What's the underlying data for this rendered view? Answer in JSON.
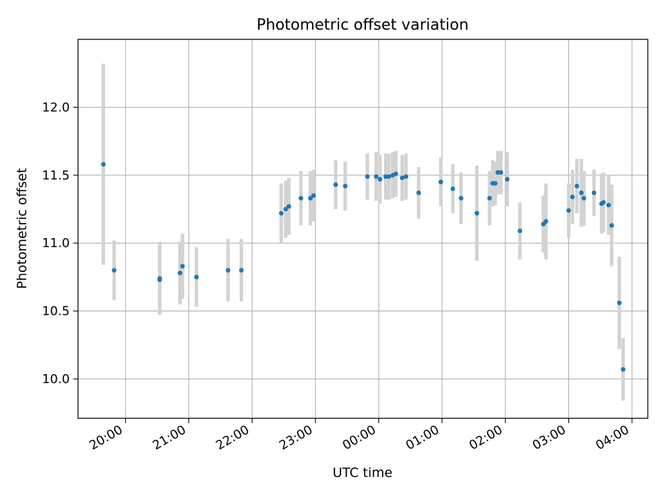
{
  "chart_data": {
    "type": "scatter",
    "title": "Photometric offset variation",
    "xlabel": "UTC time",
    "ylabel": "Photometric offset",
    "x_unit": "hours after midnight UTC (negative = before 00:00)",
    "xlim": [
      -4.75,
      4.25
    ],
    "ylim": [
      9.71,
      12.5
    ],
    "x_ticks": [
      -4,
      -3,
      -2,
      -1,
      0,
      1,
      2,
      3,
      4
    ],
    "x_tick_labels": [
      "20:00",
      "21:00",
      "22:00",
      "23:00",
      "00:00",
      "01:00",
      "02:00",
      "03:00",
      "04:00"
    ],
    "y_ticks": [
      10.0,
      10.5,
      11.0,
      11.5,
      12.0
    ],
    "y_tick_labels": [
      "10.0",
      "10.5",
      "11.0",
      "11.5",
      "12.0"
    ],
    "grid": true,
    "colors": {
      "point": "#1f77b4",
      "errorbar": "#d3d3d3",
      "grid": "#b0b0b0"
    },
    "series": [
      {
        "marker": "dot",
        "points": [
          {
            "x": -4.35,
            "y": 11.58,
            "err": 0.74
          },
          {
            "x": -4.18,
            "y": 10.8,
            "err": 0.22
          },
          {
            "x": -3.46,
            "y": 10.74,
            "err": 0.27
          },
          {
            "x": -3.46,
            "y": 10.73,
            "err": 0.24
          },
          {
            "x": -3.14,
            "y": 10.78,
            "err": 0.23
          },
          {
            "x": -3.1,
            "y": 10.83,
            "err": 0.24
          },
          {
            "x": -2.88,
            "y": 10.75,
            "err": 0.22
          },
          {
            "x": -2.38,
            "y": 10.8,
            "err": 0.23
          },
          {
            "x": -2.17,
            "y": 10.8,
            "err": 0.23
          },
          {
            "x": -1.54,
            "y": 11.22,
            "err": 0.22
          },
          {
            "x": -1.47,
            "y": 11.25,
            "err": 0.21
          },
          {
            "x": -1.42,
            "y": 11.27,
            "err": 0.21
          },
          {
            "x": -1.23,
            "y": 11.33,
            "err": 0.2
          },
          {
            "x": -1.08,
            "y": 11.33,
            "err": 0.2
          },
          {
            "x": -1.03,
            "y": 11.35,
            "err": 0.19
          },
          {
            "x": -0.68,
            "y": 11.43,
            "err": 0.18
          },
          {
            "x": -0.53,
            "y": 11.42,
            "err": 0.18
          },
          {
            "x": -0.18,
            "y": 11.49,
            "err": 0.17
          },
          {
            "x": -0.04,
            "y": 11.49,
            "err": 0.18
          },
          {
            "x": 0.02,
            "y": 11.47,
            "err": 0.18
          },
          {
            "x": 0.11,
            "y": 11.49,
            "err": 0.17
          },
          {
            "x": 0.16,
            "y": 11.49,
            "err": 0.17
          },
          {
            "x": 0.22,
            "y": 11.5,
            "err": 0.17
          },
          {
            "x": 0.27,
            "y": 11.51,
            "err": 0.17
          },
          {
            "x": 0.37,
            "y": 11.48,
            "err": 0.17
          },
          {
            "x": 0.43,
            "y": 11.49,
            "err": 0.17
          },
          {
            "x": 0.63,
            "y": 11.37,
            "err": 0.19
          },
          {
            "x": 0.98,
            "y": 11.45,
            "err": 0.18
          },
          {
            "x": 1.17,
            "y": 11.4,
            "err": 0.18
          },
          {
            "x": 1.3,
            "y": 11.33,
            "err": 0.19
          },
          {
            "x": 1.55,
            "y": 11.22,
            "err": 0.35
          },
          {
            "x": 1.75,
            "y": 11.33,
            "err": 0.2
          },
          {
            "x": 1.8,
            "y": 11.44,
            "err": 0.17
          },
          {
            "x": 1.84,
            "y": 11.44,
            "err": 0.16
          },
          {
            "x": 1.88,
            "y": 11.52,
            "err": 0.16
          },
          {
            "x": 1.93,
            "y": 11.52,
            "err": 0.16
          },
          {
            "x": 2.03,
            "y": 11.47,
            "err": 0.2
          },
          {
            "x": 2.23,
            "y": 11.09,
            "err": 0.21
          },
          {
            "x": 2.6,
            "y": 11.14,
            "err": 0.21
          },
          {
            "x": 2.64,
            "y": 11.16,
            "err": 0.28
          },
          {
            "x": 3.0,
            "y": 11.24,
            "err": 0.2
          },
          {
            "x": 3.06,
            "y": 11.34,
            "err": 0.2
          },
          {
            "x": 3.13,
            "y": 11.42,
            "err": 0.2
          },
          {
            "x": 3.2,
            "y": 11.37,
            "err": 0.25
          },
          {
            "x": 3.24,
            "y": 11.33,
            "err": 0.2
          },
          {
            "x": 3.4,
            "y": 11.37,
            "err": 0.17
          },
          {
            "x": 3.52,
            "y": 11.29,
            "err": 0.22
          },
          {
            "x": 3.55,
            "y": 11.3,
            "err": 0.22
          },
          {
            "x": 3.63,
            "y": 11.28,
            "err": 0.22
          },
          {
            "x": 3.68,
            "y": 11.13,
            "err": 0.3
          },
          {
            "x": 3.8,
            "y": 10.56,
            "err": 0.34
          },
          {
            "x": 3.86,
            "y": 10.07,
            "err": 0.23
          }
        ]
      }
    ]
  }
}
